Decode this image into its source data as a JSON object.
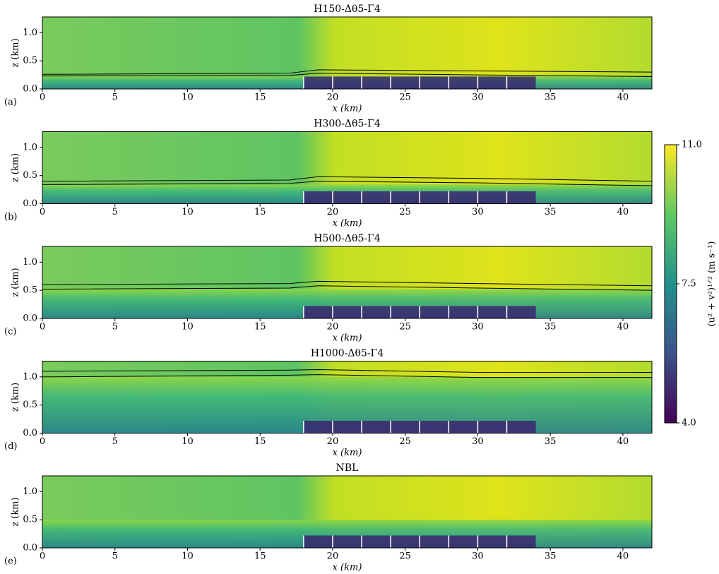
{
  "chart_data": [
    {
      "type": "heatmap",
      "title": "H150-Δθ5-Γ4",
      "panel_label": "(a)",
      "xlabel": "x (km)",
      "ylabel": "z (km)",
      "xlim": [
        0,
        42
      ],
      "xticks": [
        0,
        5,
        10,
        15,
        20,
        25,
        30,
        35,
        40
      ],
      "ylim": [
        0,
        1.28
      ],
      "yticks": [
        {
          "value": 0,
          "label": "0.0"
        },
        {
          "value": 0.5,
          "label": "0.5"
        },
        {
          "value": 1,
          "label": "1.0"
        }
      ],
      "turbines_x": [
        18,
        20,
        22,
        24,
        26,
        28,
        30,
        32
      ],
      "turbine_height": 0.22,
      "contours": [
        {
          "x": [
            0,
            17,
            19,
            30,
            42
          ],
          "values": [
            0.26,
            0.28,
            0.34,
            0.32,
            0.3
          ]
        },
        {
          "x": [
            0,
            17,
            19,
            30,
            42
          ],
          "values": [
            0.23,
            0.24,
            0.28,
            0.25,
            0.22
          ]
        }
      ]
    },
    {
      "type": "heatmap",
      "title": "H300-Δθ5-Γ4",
      "panel_label": "(b)",
      "xlabel": "x (km)",
      "ylabel": "z (km)",
      "xlim": [
        0,
        42
      ],
      "xticks": [
        0,
        5,
        10,
        15,
        20,
        25,
        30,
        35,
        40
      ],
      "ylim": [
        0,
        1.28
      ],
      "yticks": [
        {
          "value": 0,
          "label": "0.0"
        },
        {
          "value": 0.5,
          "label": "0.5"
        },
        {
          "value": 1,
          "label": "1.0"
        }
      ],
      "turbines_x": [
        18,
        20,
        22,
        24,
        26,
        28,
        30,
        32
      ],
      "turbine_height": 0.22,
      "contours": [
        {
          "x": [
            0,
            17,
            19,
            30,
            42
          ],
          "values": [
            0.4,
            0.42,
            0.48,
            0.45,
            0.4
          ]
        },
        {
          "x": [
            0,
            17,
            19,
            30,
            42
          ],
          "values": [
            0.34,
            0.36,
            0.4,
            0.37,
            0.32
          ]
        }
      ]
    },
    {
      "type": "heatmap",
      "title": "H500-Δθ5-Γ4",
      "panel_label": "(c)",
      "xlabel": "x (km)",
      "ylabel": "z (km)",
      "xlim": [
        0,
        42
      ],
      "xticks": [
        0,
        5,
        10,
        15,
        20,
        25,
        30,
        35,
        40
      ],
      "ylim": [
        0,
        1.28
      ],
      "yticks": [
        {
          "value": 0,
          "label": "0.0"
        },
        {
          "value": 0.5,
          "label": "0.5"
        },
        {
          "value": 1,
          "label": "1.0"
        }
      ],
      "turbines_x": [
        18,
        20,
        22,
        24,
        26,
        28,
        30,
        32
      ],
      "turbine_height": 0.22,
      "contours": [
        {
          "x": [
            0,
            17,
            19,
            30,
            42
          ],
          "values": [
            0.6,
            0.62,
            0.66,
            0.62,
            0.58
          ]
        },
        {
          "x": [
            0,
            17,
            19,
            30,
            42
          ],
          "values": [
            0.52,
            0.54,
            0.58,
            0.54,
            0.5
          ]
        }
      ]
    },
    {
      "type": "heatmap",
      "title": "H1000-Δθ5-Γ4",
      "panel_label": "(d)",
      "xlabel": "x (km)",
      "ylabel": "z (km)",
      "xlim": [
        0,
        42
      ],
      "xticks": [
        0,
        5,
        10,
        15,
        20,
        25,
        30,
        35,
        40
      ],
      "ylim": [
        0,
        1.28
      ],
      "yticks": [
        {
          "value": 0,
          "label": "0.0"
        },
        {
          "value": 0.5,
          "label": "0.5"
        },
        {
          "value": 1,
          "label": "1.0"
        }
      ],
      "turbines_x": [
        18,
        20,
        22,
        24,
        26,
        28,
        30,
        32
      ],
      "turbine_height": 0.22,
      "contours": [
        {
          "x": [
            0,
            17,
            19,
            30,
            42
          ],
          "values": [
            1.1,
            1.12,
            1.13,
            1.08,
            1.08
          ]
        },
        {
          "x": [
            0,
            17,
            19,
            30,
            42
          ],
          "values": [
            1.0,
            1.03,
            1.04,
            0.99,
            0.99
          ]
        }
      ]
    },
    {
      "type": "heatmap",
      "title": "NBL",
      "panel_label": "(e)",
      "xlabel": "x (km)",
      "ylabel": "z (km)",
      "xlim": [
        0,
        42
      ],
      "xticks": [
        0,
        5,
        10,
        15,
        20,
        25,
        30,
        35,
        40
      ],
      "ylim": [
        0,
        1.28
      ],
      "yticks": [
        {
          "value": 0,
          "label": "0.0"
        },
        {
          "value": 0.5,
          "label": "0.5"
        },
        {
          "value": 1,
          "label": "1.0"
        }
      ],
      "turbines_x": [
        18,
        20,
        22,
        24,
        26,
        28,
        30,
        32
      ],
      "turbine_height": 0.22,
      "contours": []
    }
  ],
  "colorbar": {
    "label": "(u² + v²)¹ᐟ² (m s⁻¹)",
    "clim": [
      4,
      11
    ],
    "ticks": [
      {
        "value": 11,
        "label": "11.0"
      },
      {
        "value": 7.5,
        "label": "7.5"
      },
      {
        "value": 4,
        "label": "4.0"
      }
    ]
  }
}
